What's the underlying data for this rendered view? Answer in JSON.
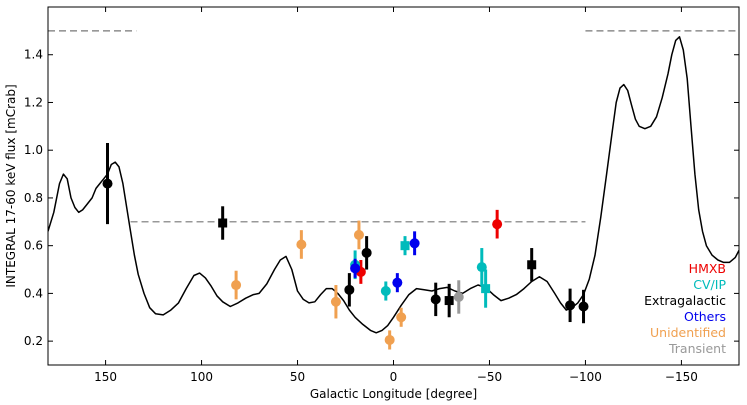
{
  "chart_data": {
    "type": "scatter",
    "xlabel": "Galactic Longitude [degree]",
    "ylabel": "INTEGRAL 17-60 keV flux [mCrab]",
    "xlim": [
      180,
      -180
    ],
    "ylim": [
      0.1,
      1.6
    ],
    "xticks": [
      150,
      100,
      50,
      0,
      -50,
      -100,
      -150
    ],
    "xtick_labels": [
      "150",
      "100",
      "50",
      "0",
      "−50",
      "−100",
      "−150"
    ],
    "yticks": [
      0.2,
      0.4,
      0.6,
      0.8,
      1.0,
      1.2,
      1.4
    ],
    "ytick_labels": [
      "0.2",
      "0.4",
      "0.6",
      "0.8",
      "1.0",
      "1.2",
      "1.4"
    ],
    "sensitivity_curve": {
      "color": "#000000",
      "x": [
        180,
        177,
        174,
        172,
        170,
        168,
        166,
        164,
        162,
        160,
        157,
        155,
        153,
        151,
        149,
        147,
        145,
        143,
        141,
        139,
        137,
        135,
        133,
        130,
        127,
        124,
        120,
        116,
        112,
        108,
        104,
        101,
        98,
        95,
        92,
        89,
        85,
        81,
        77,
        73,
        70,
        66,
        62,
        59,
        56,
        53,
        50,
        47,
        44,
        41,
        38,
        35,
        32,
        29,
        26,
        23,
        20,
        16,
        12,
        9,
        6,
        3,
        0,
        -4,
        -8,
        -12,
        -16,
        -20,
        -24,
        -28,
        -32,
        -36,
        -40,
        -44,
        -48,
        -52,
        -56,
        -60,
        -64,
        -68,
        -72,
        -76,
        -80,
        -84,
        -87,
        -90,
        -93,
        -96,
        -99,
        -102,
        -105,
        -108,
        -111,
        -114,
        -116,
        -118,
        -120,
        -122,
        -124,
        -126,
        -128,
        -131,
        -134,
        -137,
        -140,
        -143,
        -145,
        -147,
        -149,
        -151,
        -153,
        -155,
        -157,
        -159,
        -161,
        -163,
        -166,
        -169,
        -172,
        -175,
        -178,
        -180
      ],
      "y": [
        0.66,
        0.74,
        0.86,
        0.9,
        0.88,
        0.8,
        0.76,
        0.74,
        0.75,
        0.77,
        0.8,
        0.84,
        0.86,
        0.88,
        0.9,
        0.94,
        0.95,
        0.93,
        0.86,
        0.76,
        0.66,
        0.56,
        0.48,
        0.4,
        0.34,
        0.315,
        0.31,
        0.33,
        0.36,
        0.42,
        0.475,
        0.485,
        0.465,
        0.43,
        0.39,
        0.365,
        0.345,
        0.36,
        0.38,
        0.395,
        0.4,
        0.44,
        0.5,
        0.54,
        0.555,
        0.5,
        0.41,
        0.375,
        0.36,
        0.365,
        0.395,
        0.42,
        0.42,
        0.4,
        0.37,
        0.33,
        0.3,
        0.27,
        0.245,
        0.235,
        0.245,
        0.265,
        0.3,
        0.35,
        0.395,
        0.42,
        0.415,
        0.41,
        0.42,
        0.425,
        0.41,
        0.4,
        0.42,
        0.435,
        0.425,
        0.395,
        0.37,
        0.38,
        0.395,
        0.42,
        0.45,
        0.47,
        0.45,
        0.4,
        0.36,
        0.33,
        0.34,
        0.36,
        0.395,
        0.46,
        0.56,
        0.72,
        0.9,
        1.08,
        1.2,
        1.26,
        1.275,
        1.25,
        1.19,
        1.13,
        1.1,
        1.09,
        1.1,
        1.14,
        1.22,
        1.32,
        1.4,
        1.46,
        1.475,
        1.42,
        1.3,
        1.1,
        0.9,
        0.75,
        0.66,
        0.6,
        0.56,
        0.54,
        0.53,
        0.53,
        0.55,
        0.58
      ]
    },
    "sensitivity_lines": [
      {
        "x": [
          180,
          134
        ],
        "y": 1.5,
        "style": "dashed",
        "color": "#777777"
      },
      {
        "x": [
          137,
          -100
        ],
        "y": 0.7,
        "style": "dashed",
        "color": "#777777"
      },
      {
        "x": [
          -100,
          -180
        ],
        "y": 1.5,
        "style": "dashed",
        "color": "#777777"
      }
    ],
    "series": [
      {
        "name": "HMXB",
        "color": "#ee0000",
        "points": [
          {
            "x": 17,
            "y": 0.49,
            "err": 0.05,
            "marker": "circle"
          },
          {
            "x": -54,
            "y": 0.69,
            "err": 0.06,
            "marker": "circle"
          },
          {
            "x": 18,
            "y": 0.645,
            "err": 0.0,
            "marker": "small-circle"
          }
        ]
      },
      {
        "name": "CV/IP",
        "color": "#00bbbb",
        "points": [
          {
            "x": 20,
            "y": 0.52,
            "err": 0.06,
            "marker": "circle"
          },
          {
            "x": 4,
            "y": 0.41,
            "err": 0.04,
            "marker": "circle"
          },
          {
            "x": -6,
            "y": 0.6,
            "err": 0.04,
            "marker": "square"
          },
          {
            "x": -46,
            "y": 0.51,
            "err": 0.08,
            "marker": "circle"
          },
          {
            "x": -48,
            "y": 0.42,
            "err": 0.08,
            "marker": "square"
          }
        ]
      },
      {
        "name": "Extragalactic",
        "color": "#000000",
        "points": [
          {
            "x": 149,
            "y": 0.86,
            "err": 0.17,
            "marker": "circle"
          },
          {
            "x": 89,
            "y": 0.695,
            "err": 0.07,
            "marker": "square"
          },
          {
            "x": 23,
            "y": 0.415,
            "err": 0.07,
            "marker": "circle"
          },
          {
            "x": 14,
            "y": 0.57,
            "err": 0.07,
            "marker": "circle"
          },
          {
            "x": -22,
            "y": 0.375,
            "err": 0.07,
            "marker": "circle"
          },
          {
            "x": -29,
            "y": 0.37,
            "err": 0.07,
            "marker": "square"
          },
          {
            "x": -72,
            "y": 0.52,
            "err": 0.07,
            "marker": "square"
          },
          {
            "x": -92,
            "y": 0.35,
            "err": 0.07,
            "marker": "circle"
          },
          {
            "x": -99,
            "y": 0.345,
            "err": 0.07,
            "marker": "circle"
          }
        ]
      },
      {
        "name": "Others",
        "color": "#0000ee",
        "points": [
          {
            "x": 20,
            "y": 0.505,
            "err": 0.04,
            "marker": "circle"
          },
          {
            "x": -2,
            "y": 0.445,
            "err": 0.04,
            "marker": "circle"
          },
          {
            "x": -11,
            "y": 0.61,
            "err": 0.05,
            "marker": "circle"
          }
        ]
      },
      {
        "name": "Unidentified",
        "color": "#f0a050",
        "points": [
          {
            "x": 82,
            "y": 0.435,
            "err": 0.06,
            "marker": "circle"
          },
          {
            "x": 48,
            "y": 0.605,
            "err": 0.06,
            "marker": "circle"
          },
          {
            "x": 30,
            "y": 0.365,
            "err": 0.07,
            "marker": "circle"
          },
          {
            "x": 18,
            "y": 0.645,
            "err": 0.06,
            "marker": "circle"
          },
          {
            "x": 2,
            "y": 0.205,
            "err": 0.04,
            "marker": "circle"
          },
          {
            "x": -4,
            "y": 0.3,
            "err": 0.04,
            "marker": "circle"
          }
        ]
      },
      {
        "name": "Transient",
        "color": "#999999",
        "points": [
          {
            "x": -34,
            "y": 0.385,
            "err": 0.07,
            "marker": "circle"
          }
        ]
      }
    ],
    "legend": {
      "position": "bottom-right",
      "entries": [
        "HMXB",
        "CV/IP",
        "Extragalactic",
        "Others",
        "Unidentified",
        "Transient"
      ]
    }
  }
}
